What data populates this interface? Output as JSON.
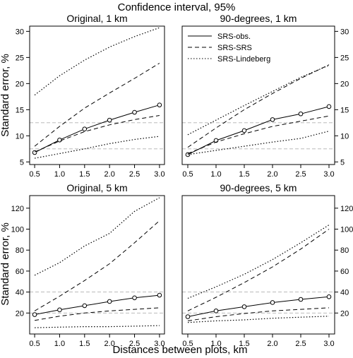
{
  "title": "Confidence interval, 95%",
  "xlabel": "Distances between plots, km",
  "ylabel": "Standard error, %",
  "legend": [
    {
      "label": "SRS-obs.",
      "style": "solid"
    },
    {
      "label": "SRS-SRS",
      "style": "dashed"
    },
    {
      "label": "SRS-Lindeberg",
      "style": "dotted"
    }
  ],
  "chart_data": [
    {
      "type": "line",
      "title": "Original, 1 km",
      "x": [
        0.5,
        1.0,
        1.5,
        2.0,
        2.5,
        3.0
      ],
      "xticks": [
        "0.5",
        "1.0",
        "1.5",
        "2.0",
        "2.5",
        "3.0"
      ],
      "ylim": [
        4.5,
        31
      ],
      "yticks": [
        5,
        10,
        15,
        20,
        25,
        30
      ],
      "ref_lines": [
        7.5,
        12.5
      ],
      "series": [
        {
          "name": "SRS-obs.",
          "values": [
            6.8,
            9.2,
            11.3,
            13.0,
            14.5,
            15.9
          ]
        },
        {
          "name": "SRS-SRS",
          "values": [
            8.0,
            11.8,
            15.3,
            18.2,
            21.0,
            23.9
          ]
        },
        {
          "name": "SRS-SRS",
          "values": [
            6.9,
            9.0,
            10.8,
            12.1,
            13.1,
            13.9
          ]
        },
        {
          "name": "SRS-Lindeberg",
          "values": [
            17.8,
            21.5,
            24.5,
            27.0,
            29.0,
            30.7
          ]
        },
        {
          "name": "SRS-Lindeberg",
          "values": [
            5.7,
            6.6,
            7.5,
            8.5,
            9.3,
            9.9
          ]
        }
      ]
    },
    {
      "type": "line",
      "title": "90-degrees, 1 km",
      "x": [
        0.5,
        1.0,
        1.5,
        2.0,
        2.5,
        3.0
      ],
      "xticks": [
        "0.5",
        "1.0",
        "1.5",
        "2.0",
        "2.5",
        "3.0"
      ],
      "ylim": [
        4.5,
        31
      ],
      "yticks": [
        5,
        10,
        15,
        20,
        25,
        30
      ],
      "ref_lines": [
        7.5,
        12.5
      ],
      "series": [
        {
          "name": "SRS-obs.",
          "values": [
            6.4,
            9.1,
            11.0,
            13.1,
            14.2,
            15.6
          ]
        },
        {
          "name": "SRS-SRS",
          "values": [
            7.8,
            11.5,
            15.0,
            18.1,
            21.0,
            23.6
          ]
        },
        {
          "name": "SRS-SRS",
          "values": [
            6.6,
            8.8,
            10.4,
            11.8,
            12.8,
            13.8
          ]
        },
        {
          "name": "SRS-Lindeberg",
          "values": [
            10.2,
            13.0,
            15.8,
            18.5,
            21.2,
            23.5
          ]
        },
        {
          "name": "SRS-Lindeberg",
          "values": [
            6.4,
            7.2,
            8.0,
            8.8,
            9.5,
            10.9
          ]
        }
      ]
    },
    {
      "type": "line",
      "title": "Original, 5 km",
      "x": [
        0.5,
        1.0,
        1.5,
        2.0,
        2.5,
        3.0
      ],
      "xticks": [
        "0.5",
        "1.0",
        "1.5",
        "2.0",
        "2.5",
        "3.0"
      ],
      "ylim": [
        0,
        132
      ],
      "yticks": [
        20,
        40,
        60,
        80,
        100,
        120
      ],
      "ref_lines": [
        20,
        40
      ],
      "series": [
        {
          "name": "SRS-obs.",
          "values": [
            18.5,
            23.0,
            27.0,
            31.0,
            34.5,
            37.0
          ]
        },
        {
          "name": "SRS-SRS",
          "values": [
            22.0,
            36.0,
            51.0,
            67.0,
            87.0,
            108.0
          ]
        },
        {
          "name": "SRS-SRS",
          "values": [
            13.0,
            17.0,
            20.0,
            22.0,
            23.5,
            25.0
          ]
        },
        {
          "name": "SRS-Lindeberg",
          "values": [
            56.0,
            68.0,
            84.0,
            96.0,
            117.0,
            130.0
          ]
        },
        {
          "name": "SRS-Lindeberg",
          "values": [
            6.0,
            6.5,
            7.0,
            7.0,
            7.5,
            8.0
          ]
        }
      ]
    },
    {
      "type": "line",
      "title": "90-degrees, 5 km",
      "x": [
        0.5,
        1.0,
        1.5,
        2.0,
        2.5,
        3.0
      ],
      "xticks": [
        "0.5",
        "1.0",
        "1.5",
        "2.0",
        "2.5",
        "3.0"
      ],
      "ylim": [
        0,
        132
      ],
      "yticks": [
        20,
        40,
        60,
        80,
        100,
        120
      ],
      "ref_lines": [
        20,
        40
      ],
      "series": [
        {
          "name": "SRS-obs.",
          "values": [
            16.5,
            22.0,
            26.0,
            30.0,
            33.0,
            35.5
          ]
        },
        {
          "name": "SRS-SRS",
          "values": [
            22.0,
            35.0,
            49.0,
            64.0,
            81.0,
            100.0
          ]
        },
        {
          "name": "SRS-SRS",
          "values": [
            12.5,
            16.5,
            19.5,
            22.0,
            23.5,
            25.0
          ]
        },
        {
          "name": "SRS-Lindeberg",
          "values": [
            34.0,
            45.0,
            57.0,
            71.0,
            87.0,
            104.0
          ]
        },
        {
          "name": "SRS-Lindeberg",
          "values": [
            11.0,
            12.5,
            13.5,
            15.0,
            16.0,
            17.0
          ]
        }
      ]
    }
  ]
}
